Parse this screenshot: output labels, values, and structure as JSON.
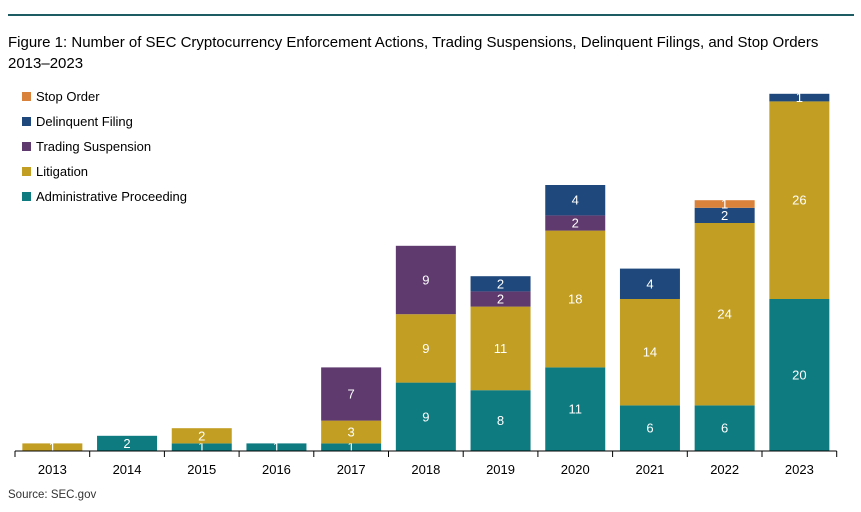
{
  "title_line1": "Figure 1: Number of SEC Cryptocurrency Enforcement Actions, Trading Suspensions, Delinquent Filings, and Stop Orders",
  "title_line2": "2013–2023",
  "source": "Source: SEC.gov",
  "chart_data": {
    "type": "bar",
    "stacked": true,
    "title": "Figure 1: Number of SEC Cryptocurrency Enforcement Actions, Trading Suspensions, Delinquent Filings, and Stop Orders 2013–2023",
    "categories": [
      "2013",
      "2014",
      "2015",
      "2016",
      "2017",
      "2018",
      "2019",
      "2020",
      "2021",
      "2022",
      "2023"
    ],
    "series": [
      {
        "name": "Administrative Proceeding",
        "color": "#0e7b80",
        "values": [
          0,
          2,
          1,
          1,
          1,
          9,
          8,
          11,
          6,
          6,
          20
        ]
      },
      {
        "name": "Litigation",
        "color": "#c29e22",
        "values": [
          1,
          0,
          2,
          0,
          3,
          9,
          11,
          18,
          14,
          24,
          26
        ]
      },
      {
        "name": "Trading Suspension",
        "color": "#5e3a6e",
        "values": [
          0,
          0,
          0,
          0,
          7,
          9,
          2,
          2,
          0,
          0,
          0
        ]
      },
      {
        "name": "Delinquent Filing",
        "color": "#1f497d",
        "values": [
          0,
          0,
          0,
          0,
          0,
          0,
          2,
          4,
          4,
          2,
          1
        ]
      },
      {
        "name": "Stop Order",
        "color": "#d9823b",
        "values": [
          0,
          0,
          0,
          0,
          0,
          0,
          0,
          0,
          0,
          1,
          0
        ]
      }
    ],
    "legend_order": [
      "Stop Order",
      "Delinquent Filing",
      "Trading Suspension",
      "Litigation",
      "Administrative Proceeding"
    ],
    "legend_position": "top-left",
    "ylim": [
      0,
      47
    ],
    "grid": false
  }
}
